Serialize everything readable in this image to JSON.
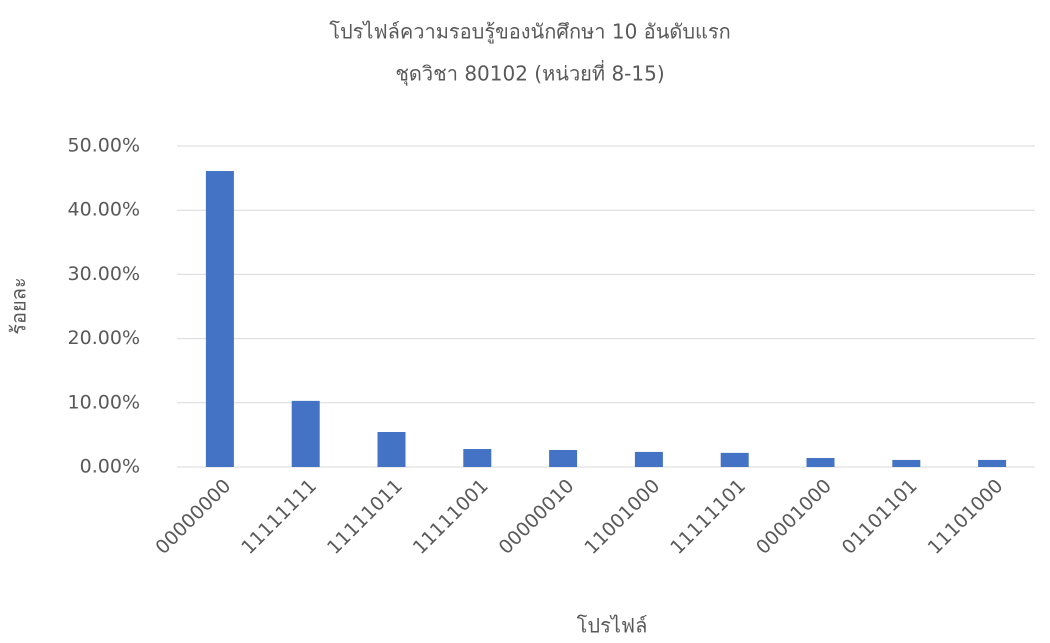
{
  "chart_data": {
    "type": "bar",
    "title": "โปรไฟล์ความรอบรู้ของนักศึกษา 10 อันดับแรก",
    "subtitle": "ชุดวิชา 80102 (หน่วยที่ 8-15)",
    "y_label": "ร้อยละ",
    "x_label": "โปรไฟล์",
    "categories": [
      "00000000",
      "11111111",
      "11111011",
      "11111001",
      "00000010",
      "11001000",
      "11111101",
      "00001000",
      "01101101",
      "11101000"
    ],
    "values": [
      46.1,
      10.3,
      5.45,
      2.8,
      2.65,
      2.35,
      2.2,
      1.4,
      1.1,
      1.1
    ],
    "color": "#4472c4",
    "ylim": [
      0,
      50
    ],
    "yticks": [
      {
        "value": 0,
        "label": "0.00%"
      },
      {
        "value": 10,
        "label": "10.00%"
      },
      {
        "value": 20,
        "label": "20.00%"
      },
      {
        "value": 30,
        "label": "30.00%"
      },
      {
        "value": 40,
        "label": "40.00%"
      },
      {
        "value": 50,
        "label": "50.00%"
      }
    ],
    "grid": true
  }
}
